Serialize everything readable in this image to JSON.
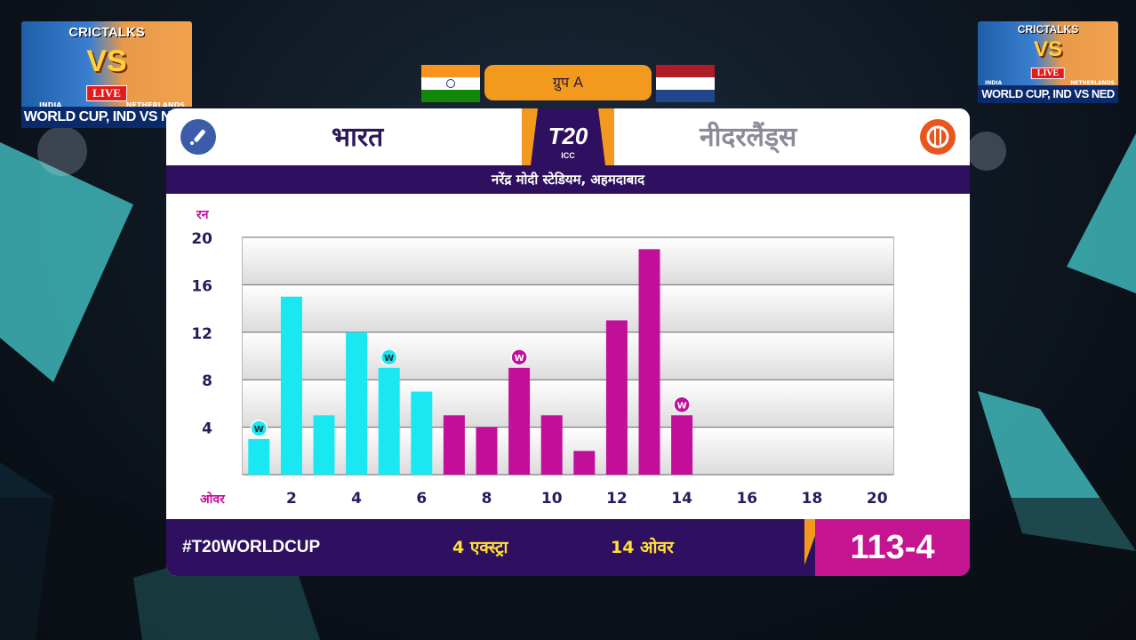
{
  "thumbnail": {
    "title": "CRICTALKS",
    "vs": "VS",
    "live": "LIVE",
    "team1": "INDIA",
    "team2": "NETHERLANDS",
    "footer": "WORLD CUP, IND VS NED"
  },
  "group_label": "ग्रुप A",
  "teams": {
    "home": "भारत",
    "away": "नीदरलैंड्स"
  },
  "logo": {
    "big": "T20",
    "small": "ICC"
  },
  "venue": "नरेंद्र मोदी स्टेडियम, अहमदाबाद",
  "footer": {
    "hashtag": "#T20WORLDCUP",
    "extras": "4 एक्स्ट्रा",
    "overs": "14 ओवर",
    "score": "113-4"
  },
  "colors": {
    "powerplay": "#19e8f2",
    "middle": "#c10f9a",
    "header_purple": "#2f1060",
    "accent_orange": "#f39a1e"
  },
  "chart_data": {
    "type": "bar",
    "ylabel": "रन",
    "xlabel": "ओवर",
    "ylim": [
      0,
      20
    ],
    "yticks": [
      4,
      8,
      12,
      16,
      20
    ],
    "xticks": [
      2,
      4,
      6,
      8,
      10,
      12,
      14,
      16,
      18,
      20
    ],
    "x_range": [
      1,
      20
    ],
    "overs": [
      1,
      2,
      3,
      4,
      5,
      6,
      7,
      8,
      9,
      10,
      11,
      12,
      13,
      14
    ],
    "values": [
      3,
      15,
      5,
      12,
      9,
      7,
      5,
      4,
      9,
      5,
      2,
      13,
      19,
      5
    ],
    "phase": [
      "pp",
      "pp",
      "pp",
      "pp",
      "pp",
      "pp",
      "mid",
      "mid",
      "mid",
      "mid",
      "mid",
      "mid",
      "mid",
      "mid"
    ],
    "wickets": [
      1,
      0,
      0,
      0,
      1,
      0,
      0,
      0,
      1,
      0,
      0,
      0,
      0,
      1
    ],
    "wicket_label": "W"
  }
}
